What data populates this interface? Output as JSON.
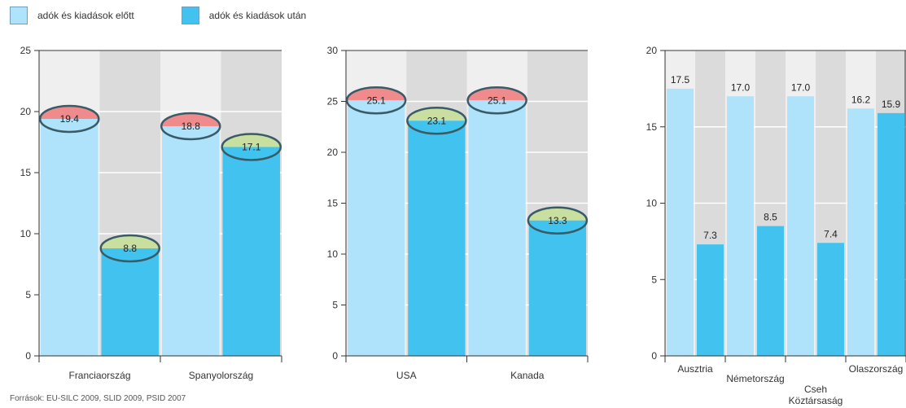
{
  "legend": {
    "before_label": "adók és kiadások előtt",
    "after_label": "adók és kiadások után"
  },
  "colors": {
    "before": "#aee3fb",
    "after": "#42c3ef",
    "band_light": "#efeff0",
    "band_dark": "#dbdbdc",
    "highlight_high": "#f08b8d",
    "highlight_low": "#c8dfa0",
    "ellipse_stroke": "#3a5a66"
  },
  "source": "Források: EU-SILC 2009, SLID 2009, PSID 2007",
  "chart_data": [
    {
      "type": "bar",
      "categories": [
        "Franciaország",
        "Spanyolország"
      ],
      "series": [
        {
          "name": "adók és kiadások előtt",
          "values": [
            19.4,
            18.8
          ]
        },
        {
          "name": "adók és kiadások után",
          "values": [
            8.8,
            17.1
          ]
        }
      ],
      "labels": [
        [
          "19.4",
          "8.8"
        ],
        [
          "18.8",
          "17.1"
        ]
      ],
      "highlight": [
        [
          "high",
          "low"
        ],
        [
          "high",
          "low"
        ]
      ],
      "yticks": [
        0,
        5,
        10,
        15,
        20,
        25
      ],
      "ylim": [
        0,
        25
      ],
      "grid": true,
      "legend": "top-left"
    },
    {
      "type": "bar",
      "categories": [
        "USA",
        "Kanada"
      ],
      "series": [
        {
          "name": "adók és kiadások előtt",
          "values": [
            25.1,
            25.1
          ]
        },
        {
          "name": "adók és kiadások után",
          "values": [
            23.1,
            13.3
          ]
        }
      ],
      "labels": [
        [
          "25.1",
          "23.1"
        ],
        [
          "25.1",
          "13.3"
        ]
      ],
      "highlight": [
        [
          "high",
          "low"
        ],
        [
          "high",
          "low"
        ]
      ],
      "yticks": [
        0,
        5,
        10,
        15,
        20,
        25,
        30
      ],
      "ylim": [
        0,
        30
      ],
      "grid": true
    },
    {
      "type": "bar",
      "categories": [
        "Ausztria",
        "Németország",
        "Cseh Köztársaság",
        "Olaszország"
      ],
      "category_lines": [
        [
          "Ausztria"
        ],
        [
          "Németország"
        ],
        [
          "Cseh",
          "Köztársaság"
        ],
        [
          "Olaszország"
        ]
      ],
      "series": [
        {
          "name": "adók és kiadások előtt",
          "values": [
            17.5,
            17.0,
            17.0,
            16.2
          ]
        },
        {
          "name": "adók és kiadások után",
          "values": [
            7.3,
            8.5,
            7.4,
            15.9
          ]
        }
      ],
      "labels": [
        [
          "17.5",
          "7.3"
        ],
        [
          "17.0",
          "8.5"
        ],
        [
          "17.0",
          "7.4"
        ],
        [
          "16.2",
          "15.9"
        ]
      ],
      "yticks": [
        0,
        5,
        10,
        15,
        20
      ],
      "ylim": [
        0,
        20
      ],
      "grid": true
    }
  ]
}
